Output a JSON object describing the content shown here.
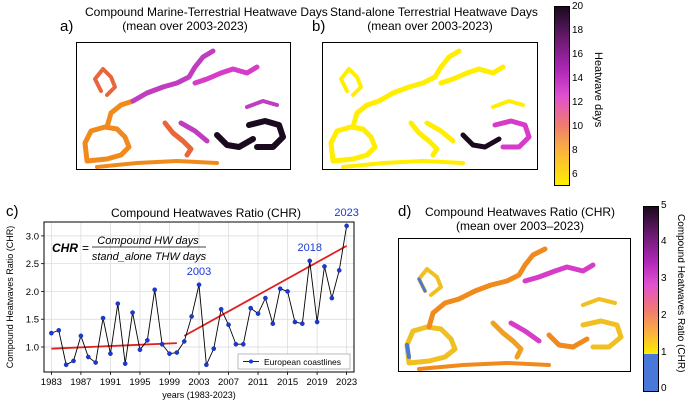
{
  "panels": {
    "a": {
      "letter": "a)",
      "title_line1": "Compound Marine-Terrestrial Heatwave Days",
      "title_line2": "(mean over 2003-2023)"
    },
    "b": {
      "letter": "b)",
      "title_line1": "Stand-alone Terrestrial Heatwave Days",
      "title_line2": "(mean over 2003-2023)"
    },
    "c": {
      "letter": "c)",
      "title": "Compound Heatwaves Ratio (CHR)",
      "formula_lhs": "CHR",
      "formula_eq": "=",
      "formula_num": "Compound HW days",
      "formula_den": "stand_alone THW days",
      "legend_label": "European coastlines",
      "annotations": [
        "2003",
        "2018",
        "2023"
      ]
    },
    "d": {
      "letter": "d)",
      "title_line1": "Compound Heatwaves Ratio (CHR)",
      "title_line2": "(mean over 2003–2023)"
    }
  },
  "colorbar_top": {
    "label": "Heatwave days",
    "ticks": [
      "20",
      "18",
      "16",
      "14",
      "12",
      "10",
      "8",
      "6"
    ],
    "colors": {
      "high": "#1a0a1e",
      "mid": "#d63cc8",
      "low": "#ffee00"
    }
  },
  "colorbar_bottom": {
    "label": "Compound Heatwaves Ratio (CHR)",
    "ticks": [
      "5",
      "4",
      "3",
      "2",
      "1",
      "0"
    ],
    "colors": {
      "high": "#1a0a1e",
      "mid": "#d63cc8",
      "low": "#ffee00",
      "below": "#4a78d8"
    }
  },
  "chart_data": {
    "type": "line",
    "title": "Compound Heatwaves Ratio (CHR)",
    "xlabel": "years (1983-2023)",
    "ylabel": "Compound Heatwaves Ratio (CHR)",
    "xlim": [
      1982,
      2024
    ],
    "ylim": [
      0.55,
      3.25
    ],
    "xticks": [
      1983,
      1987,
      1991,
      1995,
      1999,
      2003,
      2007,
      2011,
      2015,
      2019,
      2023
    ],
    "yticks": [
      1.0,
      1.5,
      2.0,
      2.5,
      3.0
    ],
    "series": [
      {
        "name": "European coastlines",
        "color": "#0a1a8a",
        "x": [
          1983,
          1984,
          1985,
          1986,
          1987,
          1988,
          1989,
          1990,
          1991,
          1992,
          1993,
          1994,
          1995,
          1996,
          1997,
          1998,
          1999,
          2000,
          2001,
          2002,
          2003,
          2004,
          2005,
          2006,
          2007,
          2008,
          2009,
          2010,
          2011,
          2012,
          2013,
          2014,
          2015,
          2016,
          2017,
          2018,
          2019,
          2020,
          2021,
          2022,
          2023
        ],
        "y": [
          1.25,
          1.3,
          0.68,
          0.75,
          1.2,
          0.82,
          0.72,
          1.52,
          0.88,
          1.78,
          0.7,
          1.62,
          0.95,
          1.12,
          2.03,
          1.05,
          0.88,
          0.9,
          1.1,
          1.55,
          2.12,
          0.68,
          0.97,
          1.68,
          1.4,
          1.05,
          1.05,
          1.7,
          1.6,
          1.88,
          1.42,
          2.05,
          2.0,
          1.45,
          1.42,
          2.55,
          1.45,
          2.45,
          1.88,
          2.38,
          3.18
        ]
      }
    ],
    "trendlines": [
      {
        "x": [
          1983,
          2000
        ],
        "y": [
          0.97,
          1.07
        ],
        "color": "#e02020"
      },
      {
        "x": [
          2001,
          2023
        ],
        "y": [
          1.2,
          2.82
        ],
        "color": "#e02020"
      }
    ]
  }
}
